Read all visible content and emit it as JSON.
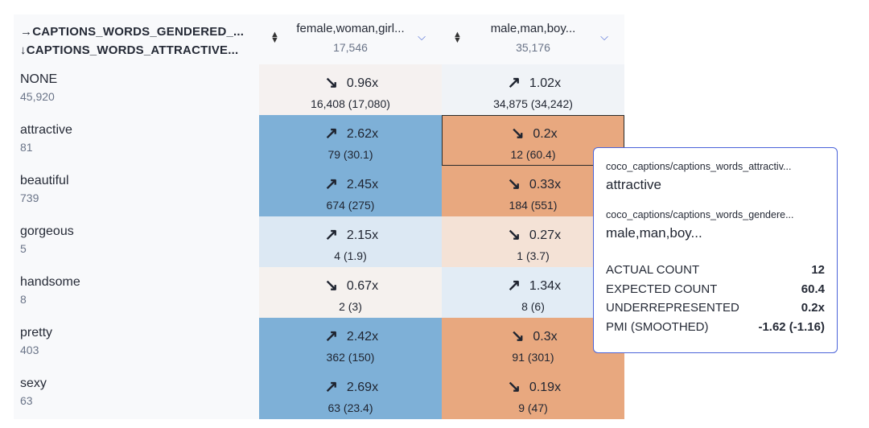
{
  "header": {
    "row_axis_label_1": "→CAPTIONS_WORDS_GENDERED_...",
    "row_axis_label_2": "↓CAPTIONS_WORDS_ATTRACTIVE..."
  },
  "columns": [
    {
      "label": "female,woman,girl...",
      "count": "17,546"
    },
    {
      "label": "male,man,boy...",
      "count": "35,176"
    }
  ],
  "rows": [
    {
      "label": "NONE",
      "count": "45,920",
      "cells": [
        {
          "ratio": "0.96x",
          "direction": "down",
          "counts": "16,408 (17,080)",
          "color": "#f5f1f0"
        },
        {
          "ratio": "1.02x",
          "direction": "up",
          "counts": "34,875 (34,242)",
          "color": "#f0f3f7"
        }
      ]
    },
    {
      "label": "attractive",
      "count": "81",
      "cells": [
        {
          "ratio": "2.62x",
          "direction": "up",
          "counts": "79 (30.1)",
          "color": "#7eb0d7"
        },
        {
          "ratio": "0.2x",
          "direction": "down",
          "counts": "12 (60.4)",
          "color": "#e8a87f",
          "selected": true
        }
      ]
    },
    {
      "label": "beautiful",
      "count": "739",
      "cells": [
        {
          "ratio": "2.45x",
          "direction": "up",
          "counts": "674 (275)",
          "color": "#7eb0d7"
        },
        {
          "ratio": "0.33x",
          "direction": "down",
          "counts": "184 (551)",
          "color": "#e8a87f"
        }
      ]
    },
    {
      "label": "gorgeous",
      "count": "5",
      "cells": [
        {
          "ratio": "2.15x",
          "direction": "up",
          "counts": "4 (1.9)",
          "color": "#dce8f3"
        },
        {
          "ratio": "0.27x",
          "direction": "down",
          "counts": "1 (3.7)",
          "color": "#f4e2d6"
        }
      ]
    },
    {
      "label": "handsome",
      "count": "8",
      "cells": [
        {
          "ratio": "0.67x",
          "direction": "down",
          "counts": "2 (3)",
          "color": "#f5f1ee"
        },
        {
          "ratio": "1.34x",
          "direction": "up",
          "counts": "8 (6)",
          "color": "#e2ecf5"
        }
      ]
    },
    {
      "label": "pretty",
      "count": "403",
      "cells": [
        {
          "ratio": "2.42x",
          "direction": "up",
          "counts": "362 (150)",
          "color": "#7eb0d7"
        },
        {
          "ratio": "0.3x",
          "direction": "down",
          "counts": "91 (301)",
          "color": "#e8a87f"
        }
      ]
    },
    {
      "label": "sexy",
      "count": "63",
      "cells": [
        {
          "ratio": "2.69x",
          "direction": "up",
          "counts": "63 (23.4)",
          "color": "#7eb0d7"
        },
        {
          "ratio": "0.19x",
          "direction": "down",
          "counts": "9 (47)",
          "color": "#e8a87f"
        }
      ]
    }
  ],
  "tooltip": {
    "row_path": "coco_captions/captions_words_attractiv...",
    "row_value": "attractive",
    "col_path": "coco_captions/captions_words_gendere...",
    "col_value": "male,man,boy...",
    "stats": [
      {
        "label": "ACTUAL COUNT",
        "value": "12"
      },
      {
        "label": "EXPECTED COUNT",
        "value": "60.4"
      },
      {
        "label": "UNDERREPRESENTED",
        "value": "0.2x"
      },
      {
        "label": "PMI (SMOOTHED)",
        "value": "-1.62 (-1.16)"
      }
    ]
  },
  "icons": {
    "up": "arrow-up-right-icon",
    "down": "arrow-down-right-icon",
    "sort": "sort-icon",
    "chevron": "chevron-down-icon"
  }
}
